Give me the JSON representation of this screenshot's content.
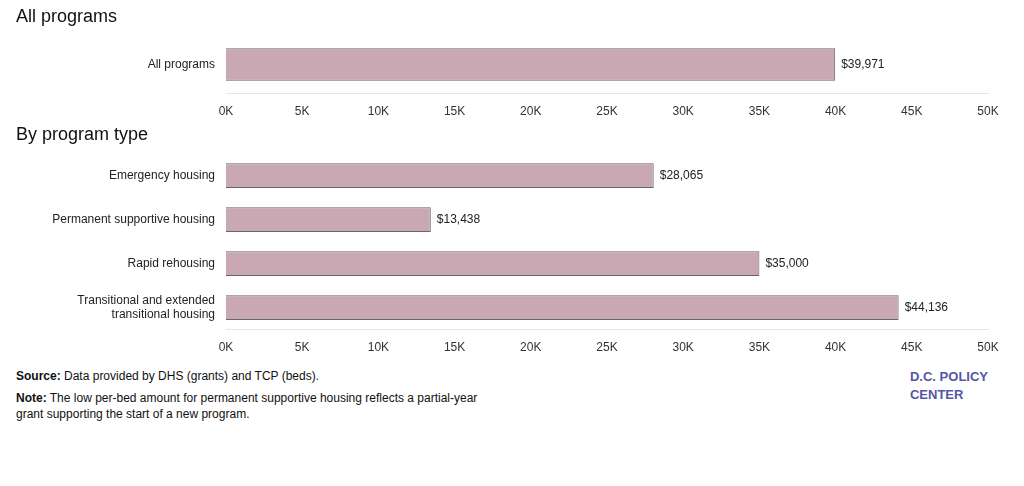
{
  "chart_data": [
    {
      "type": "bar",
      "orientation": "horizontal",
      "title": "All programs",
      "categories": [
        "All programs"
      ],
      "values": [
        39971
      ],
      "value_labels": [
        "$39,971"
      ],
      "data_labels": true,
      "color": "#c9a8b4",
      "grid": false,
      "legend": "none",
      "xlim": [
        0,
        50000
      ],
      "xticks": [
        {
          "value": 0,
          "label": "0K"
        },
        {
          "value": 5000,
          "label": "5K"
        },
        {
          "value": 10000,
          "label": "10K"
        },
        {
          "value": 15000,
          "label": "15K"
        },
        {
          "value": 20000,
          "label": "20K"
        },
        {
          "value": 25000,
          "label": "25K"
        },
        {
          "value": 30000,
          "label": "30K"
        },
        {
          "value": 35000,
          "label": "35K"
        },
        {
          "value": 40000,
          "label": "40K"
        },
        {
          "value": 45000,
          "label": "45K"
        },
        {
          "value": 50000,
          "label": "50K"
        }
      ]
    },
    {
      "type": "bar",
      "orientation": "horizontal",
      "title": "By program type",
      "categories": [
        "Emergency housing",
        "Permanent supportive housing",
        "Rapid rehousing",
        "Transitional and extended\ntransitional housing"
      ],
      "values": [
        28065,
        13438,
        35000,
        44136
      ],
      "value_labels": [
        "$28,065",
        "$13,438",
        "$35,000",
        "$44,136"
      ],
      "data_labels": true,
      "color": "#c9a8b4",
      "grid": false,
      "legend": "none",
      "xlim": [
        0,
        50000
      ],
      "xticks": [
        {
          "value": 0,
          "label": "0K"
        },
        {
          "value": 5000,
          "label": "5K"
        },
        {
          "value": 10000,
          "label": "10K"
        },
        {
          "value": 15000,
          "label": "15K"
        },
        {
          "value": 20000,
          "label": "20K"
        },
        {
          "value": 25000,
          "label": "25K"
        },
        {
          "value": 30000,
          "label": "30K"
        },
        {
          "value": 35000,
          "label": "35K"
        },
        {
          "value": 40000,
          "label": "40K"
        },
        {
          "value": 45000,
          "label": "45K"
        },
        {
          "value": 50000,
          "label": "50K"
        }
      ],
      "annotations": [
        "Source: Data provided by DHS (grants) and TCP (beds).",
        "Note: The low per-bed amount for permanent supportive housing reflects a partial-year\ngrant supporting the start of a new program.",
        "D.C. POLICY\nCENTER"
      ]
    }
  ]
}
